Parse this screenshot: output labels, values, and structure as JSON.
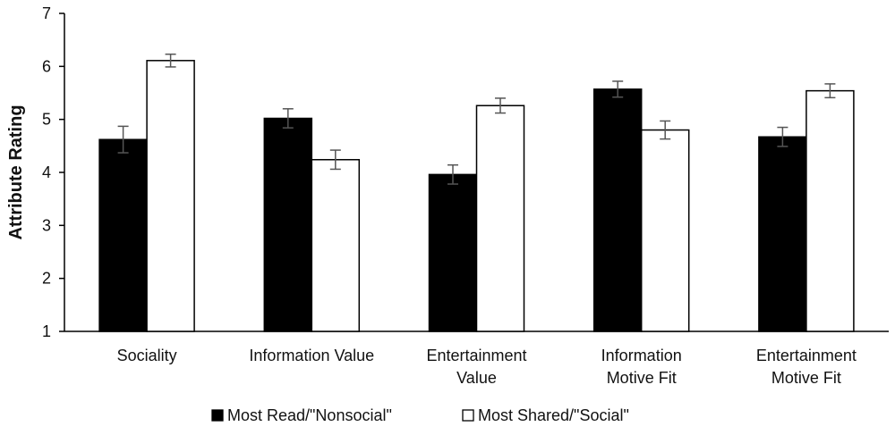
{
  "chart_data": {
    "type": "bar",
    "ylabel": "Attribute Rating",
    "ylim": [
      1,
      7
    ],
    "yticks": [
      1,
      2,
      3,
      4,
      5,
      6,
      7
    ],
    "categories": [
      [
        "Sociality"
      ],
      [
        "Information Value"
      ],
      [
        "Entertainment",
        "Value"
      ],
      [
        "Information",
        "Motive Fit"
      ],
      [
        "Entertainment",
        "Motive Fit"
      ]
    ],
    "series": [
      {
        "name": "Most Read/\"Nonsocial\"",
        "fill": "#000000",
        "values": [
          4.62,
          5.02,
          3.96,
          5.57,
          4.67
        ],
        "errors": [
          0.25,
          0.18,
          0.18,
          0.15,
          0.18
        ]
      },
      {
        "name": "Most Shared/\"Social\"",
        "fill": "#ffffff",
        "values": [
          6.11,
          4.24,
          5.26,
          4.8,
          5.54
        ],
        "errors": [
          0.12,
          0.18,
          0.14,
          0.17,
          0.13
        ]
      }
    ],
    "legend_position": "bottom",
    "grid": false
  }
}
